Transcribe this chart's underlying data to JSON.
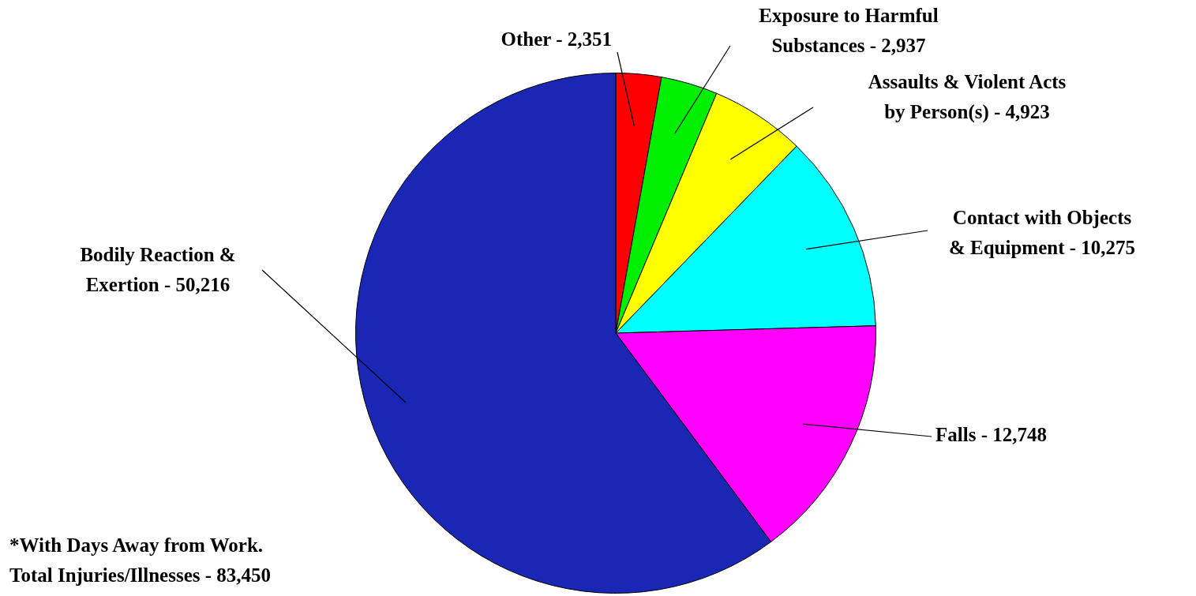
{
  "chart_data": {
    "type": "pie",
    "categories": [
      "Other",
      "Exposure to Harmful Substances",
      "Assaults & Violent Acts by Person(s)",
      "Contact with Objects & Equipment",
      "Falls",
      "Bodily Reaction & Exertion"
    ],
    "values": [
      2351,
      2937,
      4923,
      10275,
      12748,
      50216
    ],
    "value_labels": [
      "2,351",
      "2,937",
      "4,923",
      "10,275",
      "12,748",
      "50,216"
    ],
    "colors": [
      "#ff0000",
      "#00ee00",
      "#ffff00",
      "#00ffff",
      "#ff00ff",
      "#1a27b5"
    ],
    "annotations": [
      "*With Days Away from Work.",
      "Total Injuries/Illnesses - 83,450"
    ]
  }
}
